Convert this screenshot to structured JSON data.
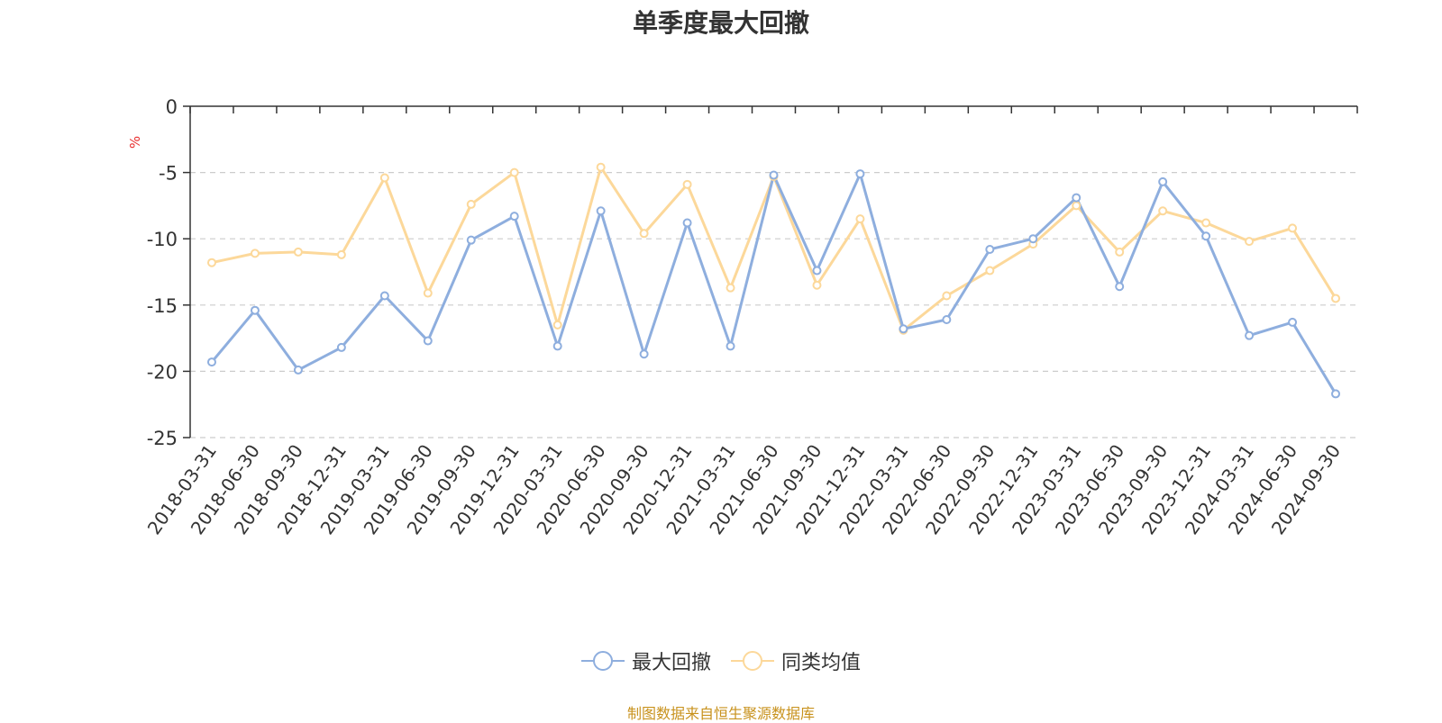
{
  "title": "单季度最大回撤",
  "source": "制图数据来自恒生聚源数据库",
  "chart_data": {
    "type": "line",
    "title": "单季度最大回撤",
    "ylabel": "%",
    "xlabel": "",
    "ylim": [
      -25,
      0
    ],
    "yticks": [
      0,
      -5,
      -10,
      -15,
      -20,
      -25
    ],
    "grid": true,
    "legend_position": "bottom-center",
    "categories": [
      "2018-03-31",
      "2018-06-30",
      "2018-09-30",
      "2018-12-31",
      "2019-03-31",
      "2019-06-30",
      "2019-09-30",
      "2019-12-31",
      "2020-03-31",
      "2020-06-30",
      "2020-09-30",
      "2020-12-31",
      "2021-03-31",
      "2021-06-30",
      "2021-09-30",
      "2021-12-31",
      "2022-03-31",
      "2022-06-30",
      "2022-09-30",
      "2022-12-31",
      "2023-03-31",
      "2023-06-30",
      "2023-09-30",
      "2023-12-31",
      "2024-03-31",
      "2024-06-30",
      "2024-09-30"
    ],
    "series": [
      {
        "name": "最大回撤",
        "color": "#8eaede",
        "values": [
          -19.3,
          -15.4,
          -19.9,
          -18.2,
          -14.3,
          -17.7,
          -10.1,
          -8.3,
          -18.1,
          -7.9,
          -18.7,
          -8.8,
          -18.1,
          -5.2,
          -12.4,
          -5.1,
          -16.8,
          -16.1,
          -10.8,
          -10.0,
          -6.9,
          -13.6,
          -5.7,
          -9.8,
          -17.3,
          -16.3,
          -21.7
        ]
      },
      {
        "name": "同类均值",
        "color": "#fcd89a",
        "values": [
          -11.8,
          -11.1,
          -11.0,
          -11.2,
          -5.4,
          -14.1,
          -7.4,
          -5.0,
          -16.5,
          -4.6,
          -9.6,
          -5.9,
          -13.7,
          -5.3,
          -13.5,
          -8.5,
          -16.9,
          -14.3,
          -12.4,
          -10.4,
          -7.5,
          -11.0,
          -7.9,
          -8.8,
          -10.2,
          -9.2,
          -14.5
        ]
      }
    ]
  }
}
